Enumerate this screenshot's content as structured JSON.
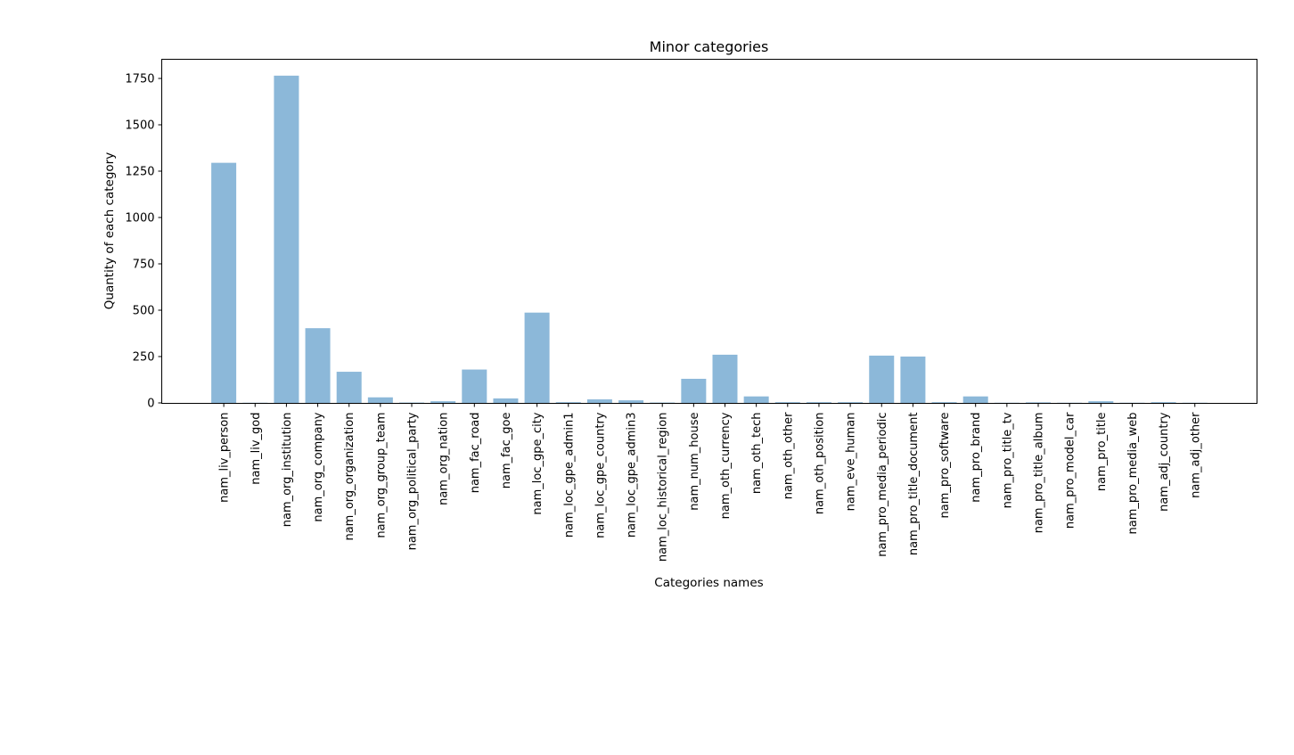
{
  "chart_data": {
    "type": "bar",
    "title": "Minor categories",
    "xlabel": "Categories names",
    "ylabel": "Quantity of each category",
    "ylim": [
      0,
      1830
    ],
    "yticks": [
      0,
      250,
      500,
      750,
      1000,
      1250,
      1500,
      1750
    ],
    "grid": false,
    "legend": "none",
    "bar_color": "#8cb8d9",
    "categories": [
      "nam_liv_person",
      "nam_liv_god",
      "nam_org_institution",
      "nam_org_company",
      "nam_org_organization",
      "nam_org_group_team",
      "nam_org_political_party",
      "nam_org_nation",
      "nam_fac_road",
      "nam_fac_goe",
      "nam_loc_gpe_city",
      "nam_loc_gpe_admin1",
      "nam_loc_gpe_country",
      "nam_loc_gpe_admin3",
      "nam_loc_historical_region",
      "nam_num_house",
      "nam_oth_currency",
      "nam_oth_tech",
      "nam_oth_other",
      "nam_oth_position",
      "nam_eve_human",
      "nam_pro_media_periodic",
      "nam_pro_title_document",
      "nam_pro_software",
      "nam_pro_brand",
      "nam_pro_title_tv",
      "nam_pro_title_album",
      "nam_pro_model_car",
      "nam_pro_title",
      "nam_pro_media_web",
      "nam_adj_country",
      "nam_adj_other"
    ],
    "values": [
      1295,
      1,
      1765,
      403,
      168,
      30,
      2,
      9,
      180,
      24,
      487,
      4,
      19,
      14,
      2,
      130,
      260,
      35,
      4,
      4,
      4,
      255,
      250,
      4,
      35,
      1,
      3,
      1,
      9,
      1,
      4,
      1
    ]
  }
}
